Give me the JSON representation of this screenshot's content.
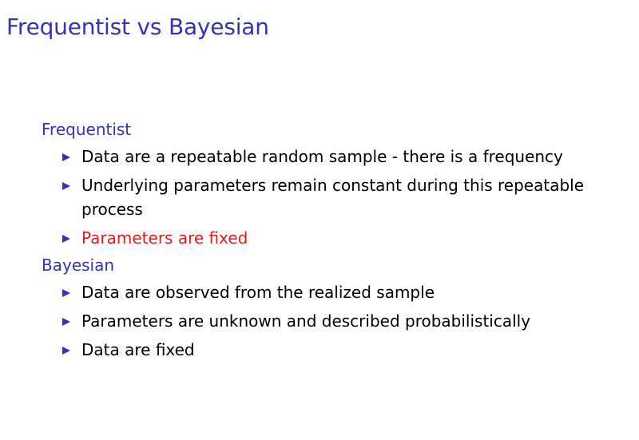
{
  "slide": {
    "title": "Frequentist vs Bayesian",
    "accent_color": "#3333b3",
    "alert_color": "#e6191a"
  },
  "sections": [
    {
      "heading": "Frequentist",
      "items": [
        {
          "text": "Data are a repeatable random sample - there is a frequency",
          "alert": false
        },
        {
          "text": "Underlying parameters remain constant during this repeatable process",
          "alert": false
        },
        {
          "text": "Parameters are fixed",
          "alert": true
        }
      ]
    },
    {
      "heading": "Bayesian",
      "items": [
        {
          "text": "Data are observed from the realized sample",
          "alert": false
        },
        {
          "text": "Parameters are unknown and described probabilistically",
          "alert": false
        },
        {
          "text": "Data are fixed",
          "alert": false
        }
      ]
    }
  ],
  "icons": {
    "bullet": "triangle-right-icon"
  }
}
